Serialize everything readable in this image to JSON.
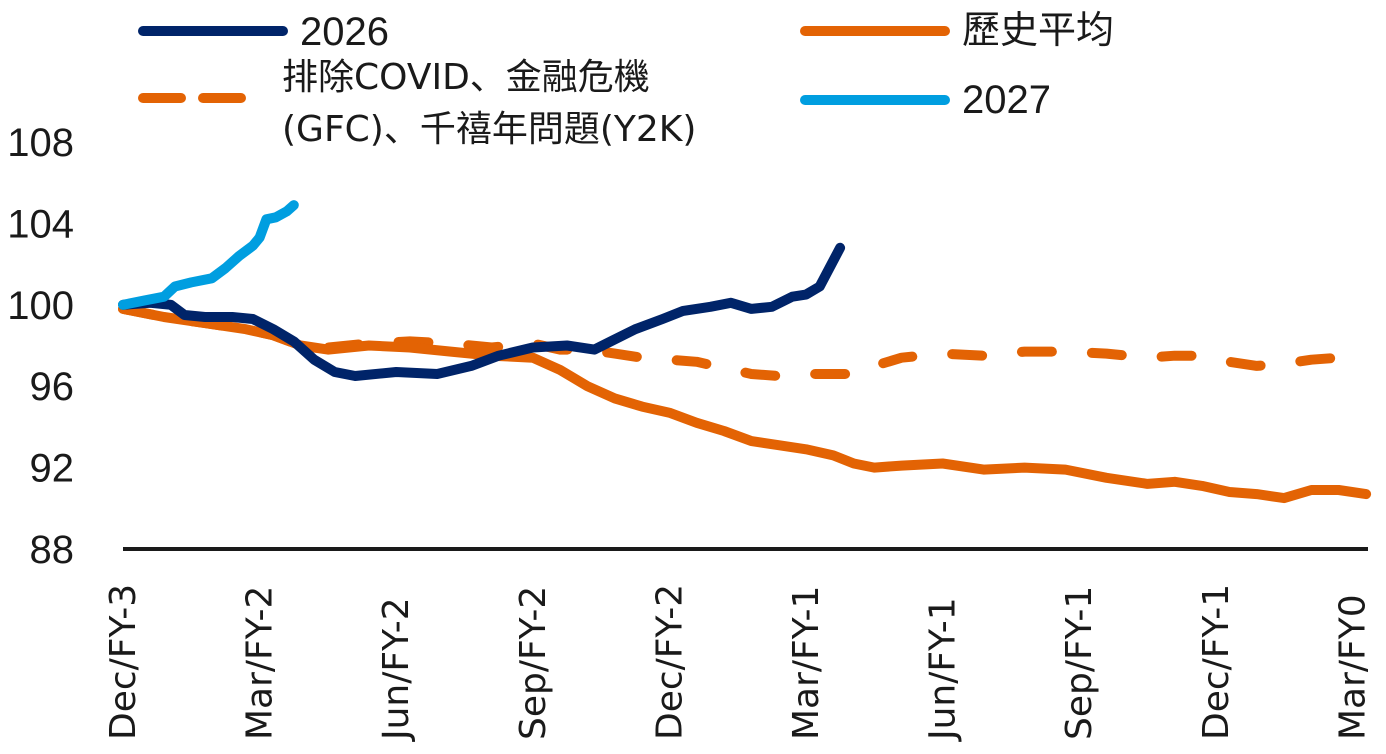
{
  "chart_data": {
    "type": "line",
    "title": "",
    "xlabel": "",
    "ylabel": "",
    "ylim": [
      88,
      108
    ],
    "yticks": [
      88,
      92,
      96,
      100,
      104,
      108
    ],
    "x_tick_labels": [
      "Dec/FY-3",
      "Mar/FY-2",
      "Jun/FY-2",
      "Sep/FY-2",
      "Dec/FY-2",
      "Mar/FY-1",
      "Jun/FY-1",
      "Sep/FY-1",
      "Dec/FY-1",
      "Mar/FY0"
    ],
    "x_unit": "quarters since Dec/FY-3",
    "xlim": [
      0,
      9.1
    ],
    "grid": false,
    "legend_position": "top",
    "series": [
      {
        "name": "2026",
        "color": "#002469",
        "style": "solid",
        "x": [
          0,
          0.2,
          0.35,
          0.45,
          0.6,
          0.8,
          0.95,
          1.1,
          1.25,
          1.4,
          1.55,
          1.7,
          2.0,
          2.3,
          2.55,
          2.75,
          3.0,
          3.25,
          3.45,
          3.6,
          3.75,
          3.95,
          4.1,
          4.3,
          4.45,
          4.6,
          4.75,
          4.9,
          5.0,
          5.1,
          5.25
        ],
        "values": [
          100,
          100.1,
          100.0,
          99.5,
          99.4,
          99.4,
          99.3,
          98.8,
          98.2,
          97.3,
          96.7,
          96.5,
          96.7,
          96.6,
          97.0,
          97.5,
          97.9,
          98.0,
          97.8,
          98.3,
          98.8,
          99.3,
          99.7,
          99.9,
          100.1,
          99.8,
          99.9,
          100.4,
          100.5,
          100.9,
          102.8
        ]
      },
      {
        "name": "2027",
        "color": "#009ee0",
        "style": "solid",
        "x": [
          0,
          0.15,
          0.3,
          0.38,
          0.5,
          0.65,
          0.75,
          0.85,
          0.95,
          1.0,
          1.05,
          1.12,
          1.2,
          1.25
        ],
        "values": [
          100,
          100.2,
          100.4,
          100.9,
          101.1,
          101.3,
          101.8,
          102.4,
          102.9,
          103.3,
          104.2,
          104.3,
          104.6,
          104.9
        ]
      },
      {
        "name": "歷史平均",
        "color": "#e36304",
        "style": "solid",
        "x": [
          0,
          0.3,
          0.6,
          0.9,
          1.1,
          1.3,
          1.5,
          1.8,
          2.1,
          2.4,
          2.7,
          3.0,
          3.2,
          3.4,
          3.6,
          3.8,
          4.0,
          4.2,
          4.4,
          4.6,
          4.8,
          5.0,
          5.2,
          5.35,
          5.5,
          5.7,
          6.0,
          6.3,
          6.6,
          6.9,
          7.2,
          7.5,
          7.7,
          7.9,
          8.1,
          8.3,
          8.5,
          8.7,
          8.9,
          9.1
        ],
        "values": [
          99.8,
          99.4,
          99.1,
          98.8,
          98.5,
          98.0,
          97.8,
          98.0,
          97.9,
          97.7,
          97.5,
          97.4,
          96.8,
          96.0,
          95.4,
          95.0,
          94.7,
          94.2,
          93.8,
          93.3,
          93.1,
          92.9,
          92.6,
          92.2,
          92.0,
          92.1,
          92.2,
          91.9,
          92.0,
          91.9,
          91.5,
          91.2,
          91.3,
          91.1,
          90.8,
          90.7,
          90.5,
          90.9,
          90.9,
          90.7
        ]
      },
      {
        "name": "排除COVID、金融危機(GFC)、千禧年問題(Y2K)",
        "color": "#e36304",
        "style": "dashed",
        "x": [
          0,
          0.3,
          0.6,
          0.9,
          1.1,
          1.3,
          1.5,
          1.8,
          2.1,
          2.4,
          2.7,
          3.0,
          3.2,
          3.4,
          3.6,
          3.8,
          4.0,
          4.2,
          4.4,
          4.6,
          4.8,
          5.0,
          5.2,
          5.35,
          5.5,
          5.7,
          6.0,
          6.3,
          6.6,
          6.9,
          7.2,
          7.5,
          7.7,
          7.9,
          8.1,
          8.3,
          8.5,
          8.7,
          8.9,
          9.1
        ],
        "values": [
          99.8,
          99.4,
          99.1,
          98.8,
          98.5,
          98.0,
          97.9,
          98.1,
          98.2,
          98.1,
          97.9,
          98.1,
          97.8,
          97.8,
          97.6,
          97.4,
          97.3,
          97.2,
          96.9,
          96.6,
          96.5,
          96.6,
          96.6,
          96.6,
          97.0,
          97.4,
          97.6,
          97.5,
          97.7,
          97.7,
          97.6,
          97.4,
          97.5,
          97.5,
          97.2,
          97.0,
          97.1,
          97.3,
          97.4,
          97.5
        ]
      }
    ]
  },
  "legend": {
    "items": [
      {
        "label": "2026",
        "color": "#002469"
      },
      {
        "label": "歷史平均",
        "color": "#e36304"
      },
      {
        "label_line1": "排除COVID、金融危機",
        "label_line2": "(GFC)、千禧年問題(Y2K)",
        "color": "#e36304"
      },
      {
        "label": "2027",
        "color": "#009ee0"
      }
    ]
  }
}
